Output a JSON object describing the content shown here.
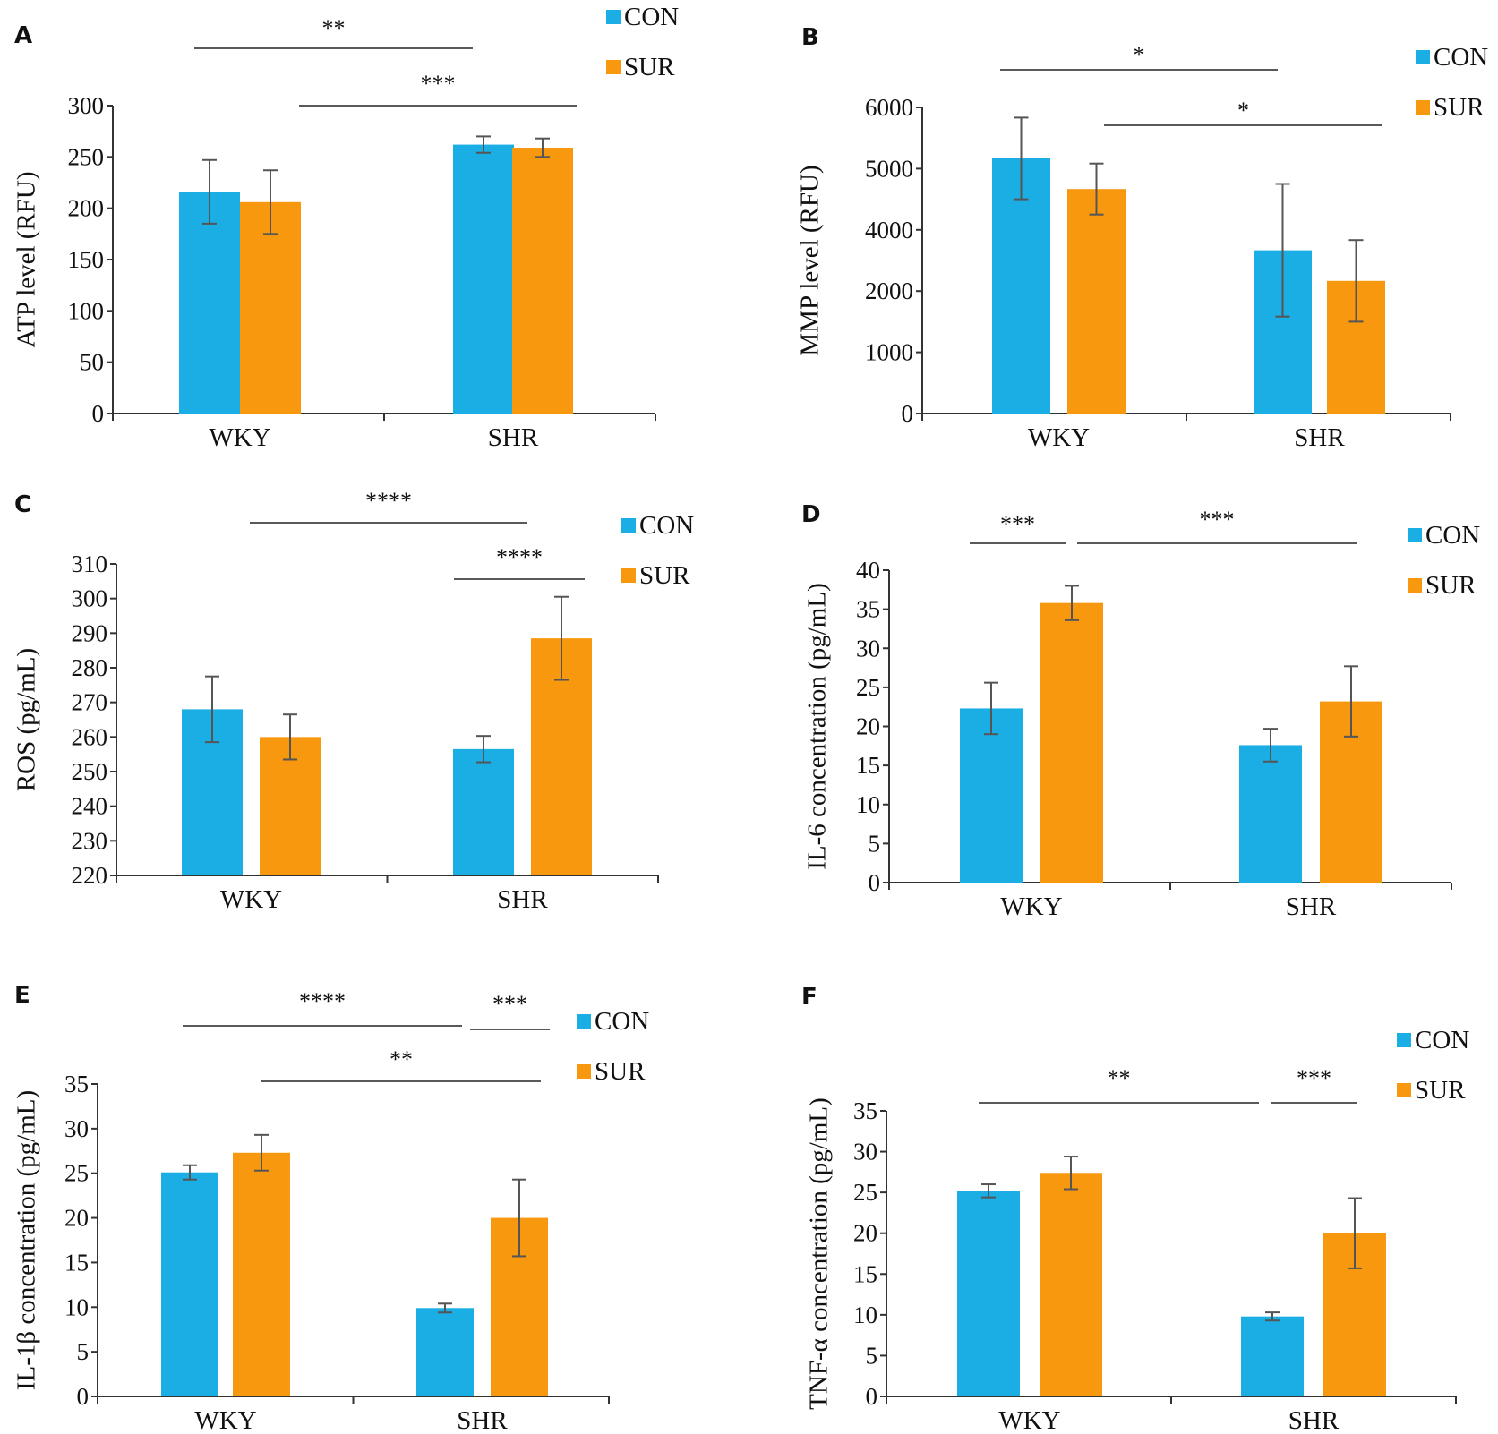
{
  "colors": {
    "CON": "#1aaee5",
    "SUR": "#f7980f",
    "axis": "#333333",
    "error": "#555555"
  },
  "legend": {
    "con_label": "CON",
    "sur_label": "SUR"
  },
  "chart_data": [
    {
      "panel": "A",
      "type": "bar",
      "categories": [
        "WKY",
        "SHR"
      ],
      "series": [
        {
          "name": "CON",
          "values": [
            216,
            262
          ],
          "errors": [
            31,
            8
          ]
        },
        {
          "name": "SUR",
          "values": [
            206,
            259
          ],
          "errors": [
            31,
            9
          ]
        }
      ],
      "ylabel": "ATP level (RFU)",
      "ylim": [
        0,
        300
      ],
      "yticks": [
        "0",
        "50",
        "100",
        "150",
        "200",
        "250",
        "300"
      ],
      "significance": [
        {
          "label": "**",
          "from": "WKY-CON",
          "to": "SHR-CON"
        },
        {
          "label": "***",
          "from": "WKY-SUR",
          "to": "SHR-SUR"
        }
      ]
    },
    {
      "panel": "B",
      "type": "bar",
      "categories": [
        "WKY",
        "SHR"
      ],
      "series": [
        {
          "name": "CON",
          "values": [
            5000,
            3200
          ],
          "errors": [
            800,
            1300
          ]
        },
        {
          "name": "SUR",
          "values": [
            4400,
            2600
          ],
          "errors": [
            500,
            800
          ]
        }
      ],
      "ylabel": "MMP level (RFU)",
      "ylim": [
        0,
        6000
      ],
      "yticks": [
        "0",
        "1000",
        "2000",
        "4000",
        "5000",
        "6000"
      ],
      "significance": [
        {
          "label": "*",
          "from": "WKY-CON",
          "to": "SHR-CON"
        },
        {
          "label": "*",
          "from": "WKY-SUR",
          "to": "SHR-SUR"
        }
      ]
    },
    {
      "panel": "C",
      "type": "bar",
      "categories": [
        "WKY",
        "SHR"
      ],
      "series": [
        {
          "name": "CON",
          "values": [
            268,
            256.5
          ],
          "errors": [
            9.5,
            3.8
          ]
        },
        {
          "name": "SUR",
          "values": [
            260,
            288.5
          ],
          "errors": [
            6.5,
            12
          ]
        }
      ],
      "ylabel": "ROS (pg/mL)",
      "ylim": [
        220,
        310
      ],
      "yticks": [
        "220",
        "230",
        "240",
        "250",
        "260",
        "270",
        "280",
        "290",
        "300",
        "310"
      ],
      "significance": [
        {
          "label": "****",
          "from": "WKY-CON",
          "to": "SHR-CON"
        },
        {
          "label": "****",
          "from": "SHR-CON",
          "to": "SHR-SUR"
        }
      ]
    },
    {
      "panel": "D",
      "type": "bar",
      "categories": [
        "WKY",
        "SHR"
      ],
      "series": [
        {
          "name": "CON",
          "values": [
            22.3,
            17.6
          ],
          "errors": [
            3.3,
            2.1
          ]
        },
        {
          "name": "SUR",
          "values": [
            35.8,
            23.2
          ],
          "errors": [
            2.2,
            4.5
          ]
        }
      ],
      "ylabel": "IL-6 concentration (pg/mL)",
      "ylim": [
        0,
        40
      ],
      "yticks": [
        "0",
        "5",
        "10",
        "15",
        "20",
        "25",
        "30",
        "35",
        "40"
      ],
      "significance": [
        {
          "label": "***",
          "from": "WKY-CON",
          "to": "WKY-SUR"
        },
        {
          "label": "***",
          "from": "WKY-SUR",
          "to": "SHR-SUR"
        }
      ]
    },
    {
      "panel": "E",
      "type": "bar",
      "categories": [
        "WKY",
        "SHR"
      ],
      "series": [
        {
          "name": "CON",
          "values": [
            25.1,
            9.9
          ],
          "errors": [
            0.8,
            0.5
          ]
        },
        {
          "name": "SUR",
          "values": [
            27.3,
            20.0
          ],
          "errors": [
            2.0,
            4.3
          ]
        }
      ],
      "ylabel": "IL-1β concentration (pg/mL)",
      "ylim": [
        0,
        35
      ],
      "yticks": [
        "0",
        "5",
        "10",
        "15",
        "20",
        "25",
        "30",
        "35"
      ],
      "significance": [
        {
          "label": "****",
          "from": "WKY-CON",
          "to": "SHR-CON"
        },
        {
          "label": "***",
          "from": "SHR-CON",
          "to": "SHR-SUR"
        },
        {
          "label": "**",
          "from": "WKY-SUR",
          "to": "SHR-SUR"
        }
      ]
    },
    {
      "panel": "F",
      "type": "bar",
      "categories": [
        "WKY",
        "SHR"
      ],
      "series": [
        {
          "name": "CON",
          "values": [
            25.2,
            9.8
          ],
          "errors": [
            0.8,
            0.5
          ]
        },
        {
          "name": "SUR",
          "values": [
            27.4,
            20.0
          ],
          "errors": [
            2.0,
            4.3
          ]
        }
      ],
      "ylabel": "TNF-α concentration (pg/mL)",
      "ylim": [
        0,
        35
      ],
      "yticks": [
        "0",
        "5",
        "10",
        "15",
        "20",
        "25",
        "30",
        "35"
      ],
      "significance": [
        {
          "label": "**",
          "from": "WKY-CON",
          "to": "SHR-CON"
        },
        {
          "label": "***",
          "from": "SHR-CON",
          "to": "SHR-SUR"
        }
      ]
    }
  ]
}
